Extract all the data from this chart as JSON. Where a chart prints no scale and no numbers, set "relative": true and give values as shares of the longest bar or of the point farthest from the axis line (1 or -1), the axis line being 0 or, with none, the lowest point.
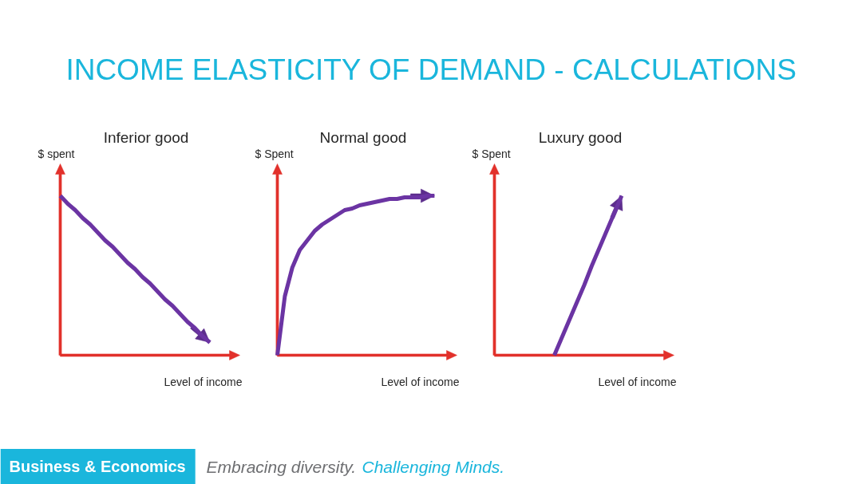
{
  "chart_data": [
    {
      "type": "other",
      "title": "INCOME ELASTICITY OF DEMAND - CALCULATIONS"
    },
    {
      "type": "line",
      "title": "Inferior good",
      "ylabel": "$ spent",
      "xlabel": "Level of income",
      "relative": true,
      "color": "#6b34a3",
      "categories": [
        null,
        null,
        null,
        null,
        null,
        null,
        null,
        null,
        null,
        null,
        null,
        null,
        null,
        null,
        null,
        null,
        null,
        null,
        null,
        null,
        null,
        null,
        null,
        null,
        null
      ],
      "values": [
        1.0,
        0.95,
        0.91,
        0.86,
        0.82,
        0.77,
        0.72,
        0.68,
        0.63,
        0.58,
        0.54,
        0.49,
        0.45,
        0.4,
        0.35,
        0.31,
        0.26,
        0.21,
        0.17,
        0.12,
        0.08,
        null,
        null,
        null,
        null
      ]
    },
    {
      "type": "line",
      "title": "Normal good",
      "ylabel": "$ Spent",
      "xlabel": "Level of income",
      "relative": true,
      "color": "#6b34a3",
      "categories": [
        null,
        null,
        null,
        null,
        null,
        null,
        null,
        null,
        null,
        null,
        null,
        null,
        null,
        null,
        null,
        null,
        null,
        null,
        null,
        null,
        null,
        null,
        null,
        null,
        null
      ],
      "values": [
        0,
        0.37,
        0.55,
        0.66,
        0.72,
        0.78,
        0.82,
        0.85,
        0.88,
        0.91,
        0.92,
        0.94,
        0.95,
        0.96,
        0.97,
        0.98,
        0.98,
        0.99,
        0.99,
        0.99,
        1.0,
        1.0,
        null,
        null,
        null
      ]
    },
    {
      "type": "line",
      "title": "Luxury good",
      "ylabel": "$ Spent",
      "xlabel": "Level of income",
      "relative": true,
      "color": "#6b34a3",
      "categories": [
        null,
        null,
        null,
        null,
        null,
        null,
        null,
        null,
        null,
        null,
        null,
        null,
        null,
        null,
        null,
        null,
        null,
        null,
        null,
        null,
        null,
        null,
        null,
        null,
        null
      ],
      "values": [
        null,
        null,
        null,
        null,
        null,
        null,
        null,
        null,
        0,
        0.11,
        0.22,
        0.33,
        0.44,
        0.56,
        0.67,
        0.78,
        0.89,
        1.0,
        null,
        null,
        null,
        null,
        null,
        null,
        null
      ]
    },
    {
      "type": "other",
      "annotations": [
        "Business & Economics",
        "Embracing diversity.",
        "Challenging Minds."
      ]
    }
  ]
}
